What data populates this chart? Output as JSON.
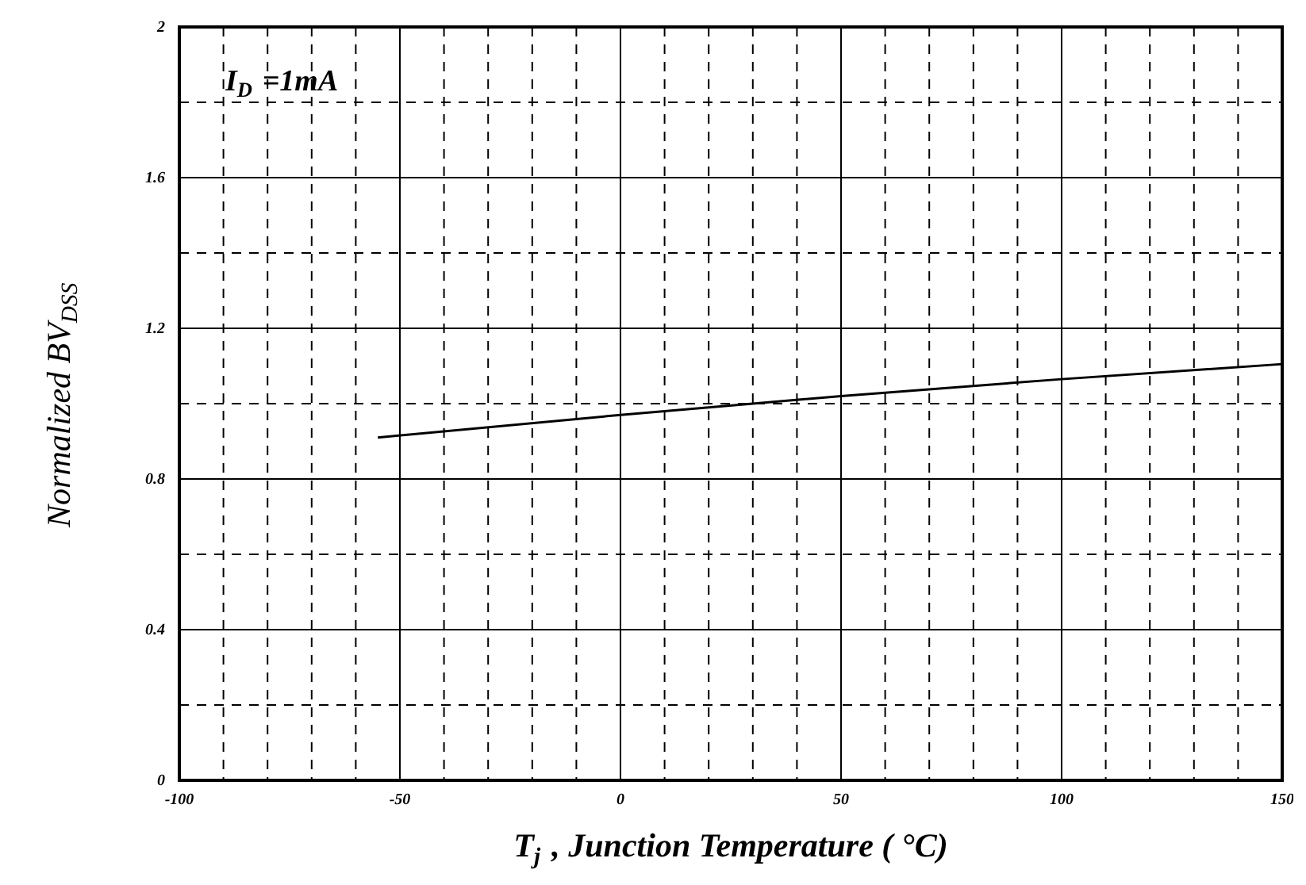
{
  "chart_data": {
    "type": "line",
    "xlabel": "T$_{j}$ , Junction Temperature ( °C)",
    "ylabel": "Normalized BV$_{DSS}$",
    "annotations": [
      "I$_{D}$ =1mA"
    ],
    "x": [
      -55,
      0,
      50,
      100,
      150
    ],
    "series": [
      {
        "color": "#000000",
        "values": [
          0.91,
          0.97,
          1.02,
          1.065,
          1.105
        ]
      }
    ],
    "xlim": [
      -100,
      150
    ],
    "xticks": [
      -100,
      {
        "value": -90,
        "label": null
      },
      {
        "value": -80,
        "label": null
      },
      {
        "value": -70,
        "label": null
      },
      {
        "value": -60,
        "label": null
      },
      -50,
      {
        "value": -40,
        "label": null
      },
      {
        "value": -30,
        "label": null
      },
      {
        "value": -20,
        "label": null
      },
      {
        "value": -10,
        "label": null
      },
      0,
      {
        "value": 10,
        "label": null
      },
      {
        "value": 20,
        "label": null
      },
      {
        "value": 30,
        "label": null
      },
      {
        "value": 40,
        "label": null
      },
      50,
      {
        "value": 60,
        "label": null
      },
      {
        "value": 70,
        "label": null
      },
      {
        "value": 80,
        "label": null
      },
      {
        "value": 90,
        "label": null
      },
      100,
      {
        "value": 110,
        "label": null
      },
      {
        "value": 120,
        "label": null
      },
      {
        "value": 130,
        "label": null
      },
      {
        "value": 140,
        "label": null
      },
      150
    ],
    "ylim": [
      0,
      2
    ],
    "yticks": [
      0,
      {
        "value": 0.2,
        "label": null
      },
      0.4,
      {
        "value": 0.6,
        "label": null
      },
      0.8,
      {
        "value": 1.0,
        "label": null
      },
      1.2,
      {
        "value": 1.4,
        "label": null
      },
      1.6,
      {
        "value": 1.8,
        "label": null
      },
      2
    ],
    "grid": true,
    "line_style": "solid"
  }
}
